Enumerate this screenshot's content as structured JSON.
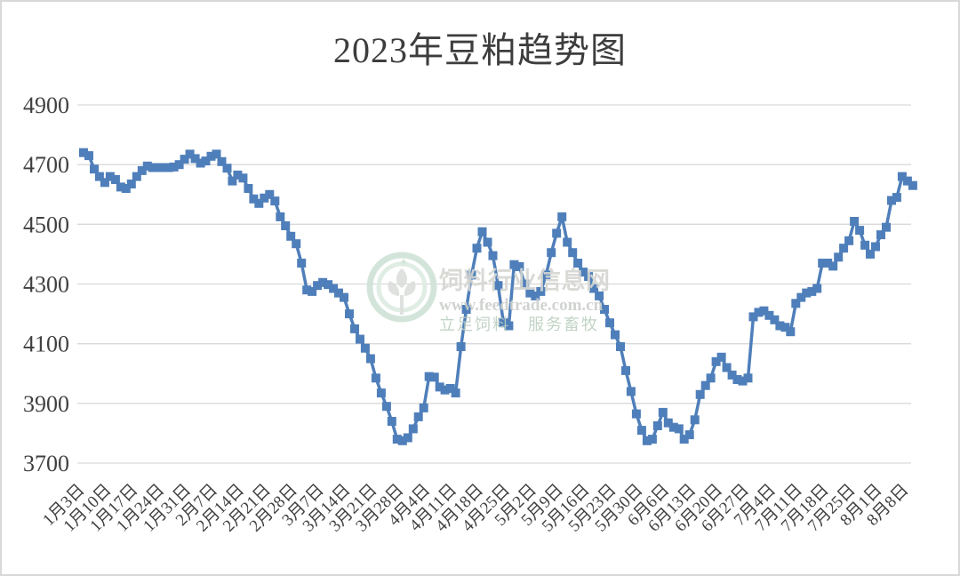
{
  "chart_data": {
    "type": "line",
    "title": "2023年豆粕趋势图",
    "marker": "square",
    "grid": true,
    "legend_position": "none",
    "ylim": [
      3700,
      4900
    ],
    "y_ticks": [
      3700,
      3900,
      4100,
      4300,
      4500,
      4700,
      4900
    ],
    "x_tick_every": 5,
    "x_tick_labels": [
      "1月3日",
      "1月10日",
      "1月17日",
      "1月24日",
      "1月31日",
      "2月7日",
      "2月14日",
      "2月21日",
      "2月28日",
      "3月7日",
      "3月14日",
      "3月21日",
      "3月28日",
      "4月4日",
      "4月11日",
      "4月18日",
      "4月25日",
      "5月2日",
      "5月9日",
      "5月16日",
      "5月23日",
      "5月30日",
      "6月6日",
      "6月13日",
      "6月20日",
      "6月27日",
      "7月4日",
      "7月11日",
      "7月18日",
      "7月25日",
      "8月1日",
      "8月8日"
    ],
    "values": [
      4740,
      4730,
      4685,
      4660,
      4640,
      4660,
      4650,
      4625,
      4620,
      4635,
      4660,
      4680,
      4695,
      4690,
      4690,
      4690,
      4690,
      4692,
      4700,
      4718,
      4735,
      4720,
      4705,
      4712,
      4728,
      4735,
      4710,
      4688,
      4645,
      4665,
      4655,
      4620,
      4585,
      4570,
      4588,
      4600,
      4578,
      4525,
      4495,
      4460,
      4435,
      4370,
      4280,
      4275,
      4295,
      4305,
      4298,
      4285,
      4270,
      4255,
      4200,
      4150,
      4115,
      4085,
      4050,
      3985,
      3935,
      3890,
      3840,
      3780,
      3775,
      3785,
      3815,
      3855,
      3885,
      3990,
      3988,
      3955,
      3945,
      3950,
      3935,
      4090,
      4215,
      4330,
      4420,
      4475,
      4440,
      4395,
      4295,
      4170,
      4160,
      4365,
      4358,
      4300,
      4270,
      4260,
      4275,
      4330,
      4405,
      4470,
      4525,
      4440,
      4405,
      4370,
      4340,
      4325,
      4285,
      4260,
      4215,
      4170,
      4130,
      4090,
      4010,
      3940,
      3865,
      3810,
      3775,
      3780,
      3825,
      3870,
      3835,
      3820,
      3815,
      3780,
      3795,
      3845,
      3930,
      3960,
      3985,
      4040,
      4055,
      4020,
      3995,
      3980,
      3975,
      3985,
      4190,
      4205,
      4210,
      4195,
      4180,
      4160,
      4155,
      4140,
      4235,
      4255,
      4270,
      4275,
      4285,
      4370,
      4370,
      4360,
      4390,
      4420,
      4445,
      4510,
      4480,
      4430,
      4400,
      4425,
      4465,
      4490,
      4580,
      4590,
      4660,
      4645,
      4630
    ],
    "colors": {
      "line": "#4f7fba",
      "grid": "#d9d9d9",
      "axis_text": "#404040",
      "title_text": "#3d3d3d"
    }
  },
  "watermark": {
    "site_name": "饲料行业信息网",
    "site_url": "www.feedtrade.com.cn",
    "slogan": "立足饲料　服务畜牧",
    "colors": {
      "ring": "#cfe3d8",
      "ring_inner": "#ddece2",
      "glyph": "#dbdedb",
      "site_name_text": "#d5d6d2",
      "url_text": "#cbcfcb",
      "slogan_text": "#bccfc1"
    }
  }
}
